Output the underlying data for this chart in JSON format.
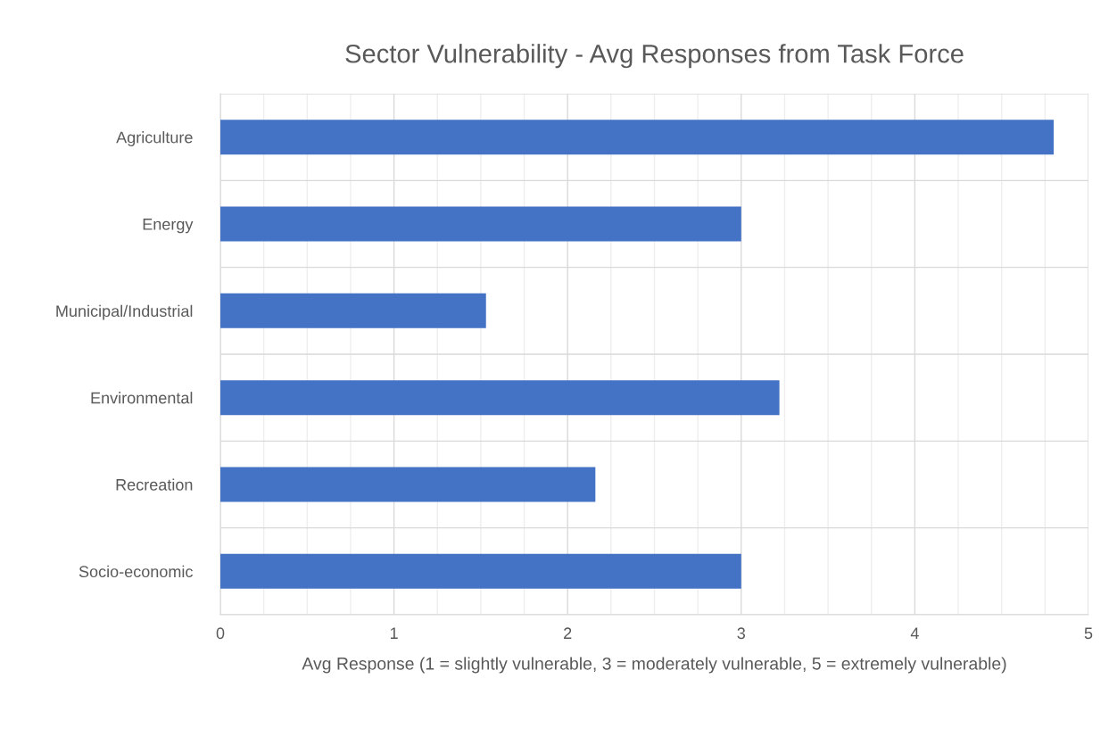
{
  "chart_data": {
    "type": "bar",
    "orientation": "horizontal",
    "title": "Sector Vulnerability - Avg Responses from Task Force",
    "xlabel": "Avg Response (1 = slightly vulnerable, 3 = moderately vulnerable, 5 = extremely vulnerable)",
    "categories": [
      "Agriculture",
      "Energy",
      "Municipal/Industrial",
      "Environmental",
      "Recreation",
      "Socio-economic"
    ],
    "values": [
      4.8,
      3.0,
      1.53,
      3.22,
      2.16,
      3.0
    ],
    "color": "#4472c4",
    "xlim": [
      0,
      5
    ],
    "xticks": [
      0,
      {
        "value": 0.25,
        "label": null
      },
      {
        "value": 0.5,
        "label": null
      },
      {
        "value": 0.75,
        "label": null
      },
      1,
      {
        "value": 1.25,
        "label": null
      },
      {
        "value": 1.5,
        "label": null
      },
      {
        "value": 1.75,
        "label": null
      },
      2,
      {
        "value": 2.25,
        "label": null
      },
      {
        "value": 2.5,
        "label": null
      },
      {
        "value": 2.75,
        "label": null
      },
      3,
      {
        "value": 3.25,
        "label": null
      },
      {
        "value": 3.5,
        "label": null
      },
      {
        "value": 3.75,
        "label": null
      },
      4,
      {
        "value": 4.25,
        "label": null
      },
      {
        "value": 4.5,
        "label": null
      },
      {
        "value": 4.75,
        "label": null
      },
      5
    ],
    "grid": true
  }
}
